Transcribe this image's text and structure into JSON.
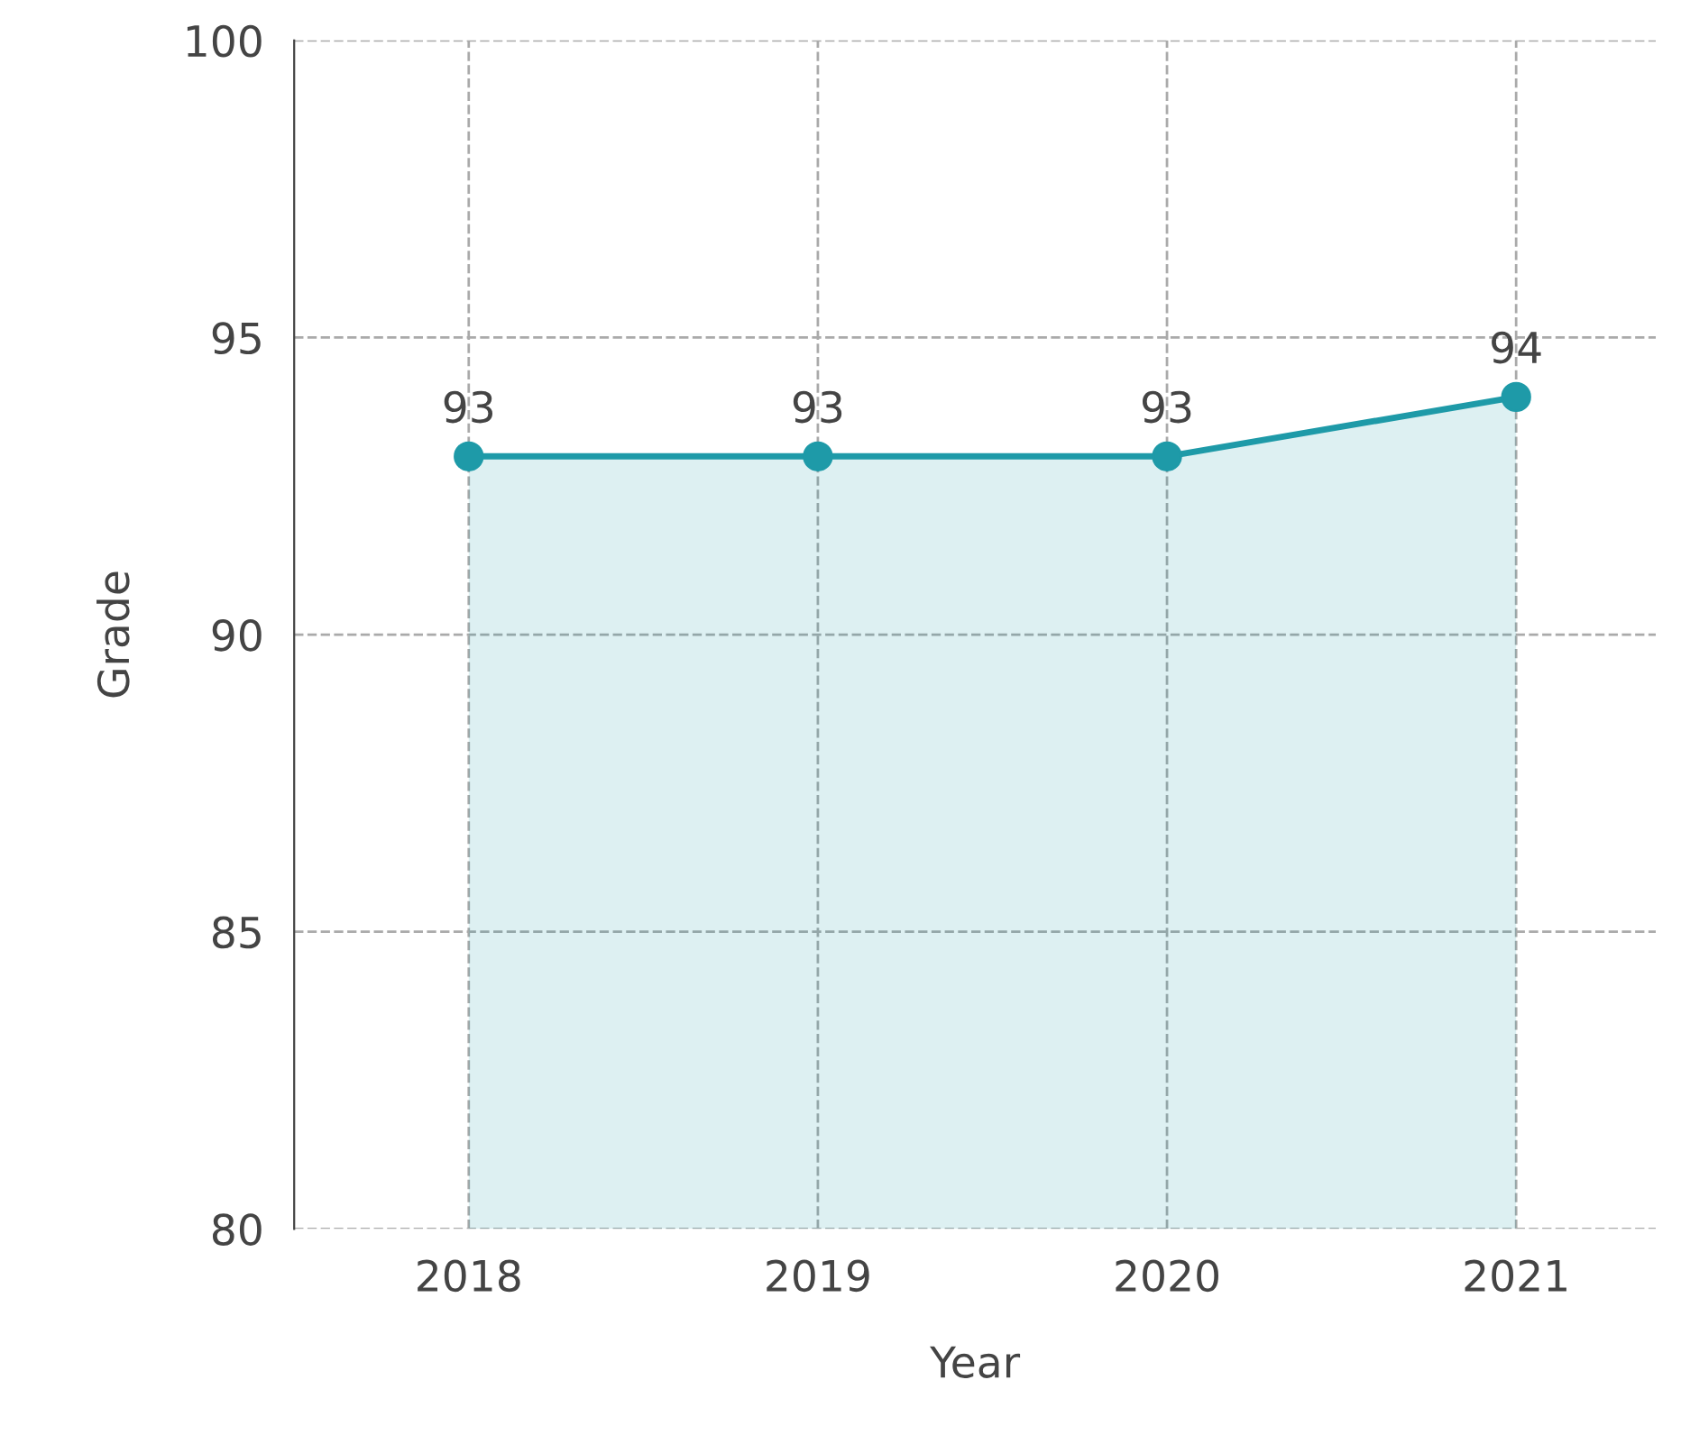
{
  "chart_data": {
    "type": "area",
    "xlabel": "Year",
    "ylabel": "Grade",
    "categories": [
      "2018",
      "2019",
      "2020",
      "2021"
    ],
    "series": [
      {
        "color": "#1e9aa8",
        "values": [
          93,
          93,
          93,
          94
        ]
      }
    ],
    "ylim": [
      80,
      100
    ],
    "yticks": [
      80,
      85,
      90,
      95,
      100
    ],
    "grid": true,
    "marker": "circle",
    "line_style": "solid",
    "data_labels": true
  }
}
